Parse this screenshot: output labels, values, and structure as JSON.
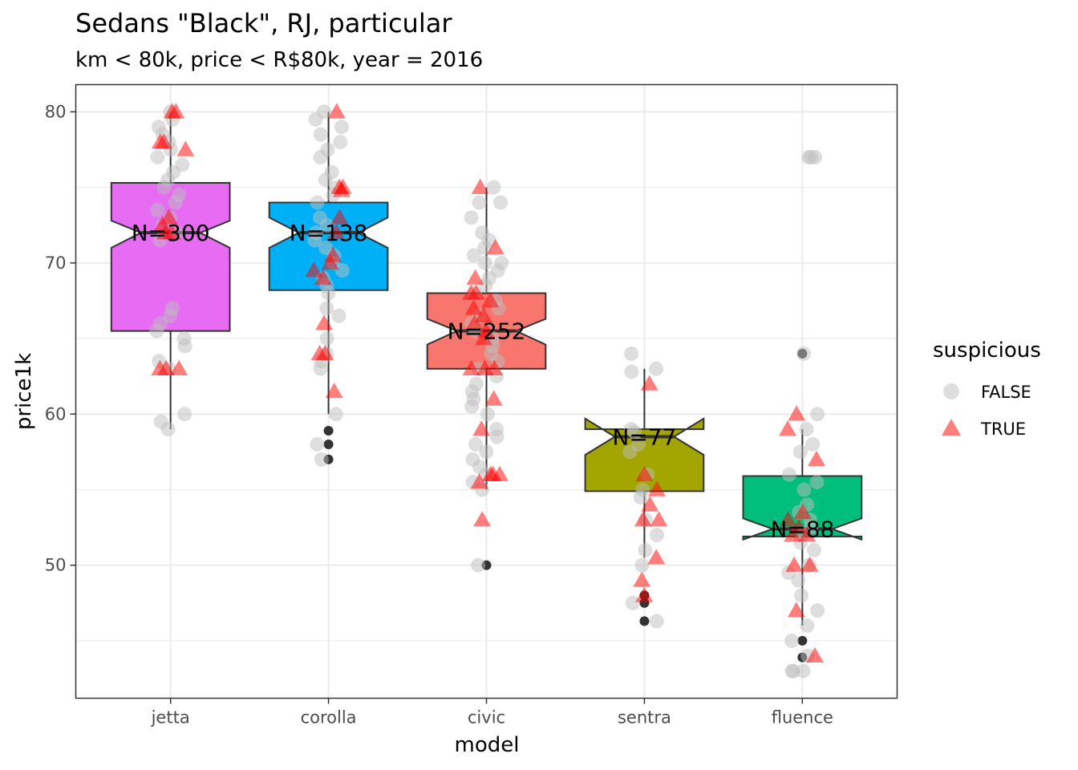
{
  "chart_data": {
    "type": "box",
    "title": "Sedans \"Black\", RJ, particular",
    "subtitle": "km < 80k, price < R$80k, year = 2016",
    "xlabel": "model",
    "ylabel": "price1k",
    "ylim": [
      41.2,
      81.8
    ],
    "yticks": [
      50,
      60,
      70,
      80
    ],
    "categories": [
      "jetta",
      "corolla",
      "civic",
      "sentra",
      "fluence"
    ],
    "grid": true,
    "notched": true,
    "boxes": [
      {
        "model": "jetta",
        "q1": 65.5,
        "median": 72.0,
        "q3": 75.3,
        "notch_low": 71.0,
        "notch_high": 72.8,
        "whisker_low": 59.0,
        "whisker_high": 80.0,
        "fill": "#E76BF3",
        "label": "N=300",
        "outliers": []
      },
      {
        "model": "corolla",
        "q1": 68.2,
        "median": 72.0,
        "q3": 74.0,
        "notch_low": 71.0,
        "notch_high": 73.0,
        "whisker_low": 60.0,
        "whisker_high": 80.0,
        "fill": "#00B0F6",
        "label": "N=138",
        "outliers": [
          58.9,
          58.0,
          57.0
        ]
      },
      {
        "model": "civic",
        "q1": 63.0,
        "median": 65.5,
        "q3": 68.0,
        "notch_low": 64.6,
        "notch_high": 66.3,
        "whisker_low": 55.0,
        "whisker_high": 75.0,
        "fill": "#F8766D",
        "label": "N=252",
        "outliers": [
          50.0
        ]
      },
      {
        "model": "sentra",
        "q1": 54.9,
        "median": 58.5,
        "q3": 59.0,
        "notch_low": 57.3,
        "notch_high": 59.7,
        "whisker_low": 50.5,
        "whisker_high": 63.0,
        "fill": "#A3A500",
        "label": "N=77",
        "outliers": [
          48.0,
          47.5,
          46.3
        ]
      },
      {
        "model": "fluence",
        "q1": 51.9,
        "median": 52.4,
        "q3": 55.9,
        "notch_low": 51.7,
        "notch_high": 53.1,
        "whisker_low": 46.0,
        "whisker_high": 59.0,
        "fill": "#00BF7D",
        "label": "N=88",
        "outliers": [
          64.0,
          45.0,
          43.9
        ]
      }
    ],
    "legend": {
      "title": "suspicious",
      "position": "right",
      "entries": [
        {
          "label": "FALSE",
          "shape": "circle",
          "color": "#bebebe"
        },
        {
          "label": "TRUE",
          "shape": "triangle",
          "color": "#ff0000"
        }
      ]
    },
    "points": {
      "jetta": {
        "false": [
          80,
          79.5,
          79,
          78.5,
          78,
          77.5,
          77,
          76.5,
          76,
          75.5,
          75,
          74.5,
          74,
          73.5,
          73,
          72.5,
          72,
          71.5,
          67,
          66.5,
          66,
          65.5,
          65,
          64.5,
          63.5,
          63,
          60,
          59.5,
          59
        ],
        "true": [
          80,
          80,
          78,
          78,
          77.5,
          73,
          72.5,
          72,
          72,
          63,
          63,
          63
        ]
      },
      "corolla": {
        "false": [
          80,
          79.5,
          79,
          78.5,
          78,
          77.5,
          77,
          76,
          75.5,
          75,
          74.5,
          74,
          73,
          72.5,
          72,
          71.5,
          71,
          70.5,
          70,
          69.5,
          69,
          68.5,
          68,
          67,
          66.5,
          65,
          64,
          63.5,
          63,
          60,
          58,
          57
        ],
        "true": [
          80,
          75,
          75,
          74.8,
          73,
          72,
          70.5,
          70,
          69.5,
          69,
          66,
          64,
          64,
          61.5
        ]
      },
      "civic": {
        "false": [
          75,
          74,
          74,
          73,
          72,
          71.5,
          71,
          70.5,
          70,
          70,
          69.5,
          69,
          68.5,
          68,
          67.5,
          67,
          66.5,
          66,
          65.5,
          65,
          64.5,
          64,
          63.5,
          63,
          62.5,
          62,
          61.5,
          61,
          60.5,
          60,
          59,
          58.5,
          58,
          57.5,
          57,
          56.5,
          56,
          55.5,
          55,
          50
        ],
        "true": [
          75,
          71,
          69,
          68,
          68,
          67.5,
          67,
          66.5,
          66,
          65.5,
          65,
          63,
          63,
          63,
          61,
          59,
          56,
          56,
          56,
          55.5,
          53
        ]
      },
      "sentra": {
        "false": [
          64,
          63,
          62.8,
          59,
          58.8,
          58,
          57.5,
          56,
          55,
          54.5,
          53,
          52,
          51,
          50,
          47.5,
          46.3
        ],
        "true": [
          62,
          56,
          55,
          54,
          53,
          53,
          50.5,
          49,
          48
        ]
      },
      "fluence": {
        "false": [
          77,
          77,
          77,
          64,
          60,
          59,
          58,
          57.5,
          56,
          55.5,
          55,
          54,
          53.5,
          53,
          52.5,
          52,
          51.5,
          51,
          50,
          49.5,
          49,
          48,
          47,
          46,
          45,
          44,
          43,
          43,
          43
        ],
        "true": [
          60,
          59,
          57,
          53.5,
          53,
          52.5,
          52,
          52,
          50,
          50,
          47,
          44
        ]
      }
    }
  }
}
